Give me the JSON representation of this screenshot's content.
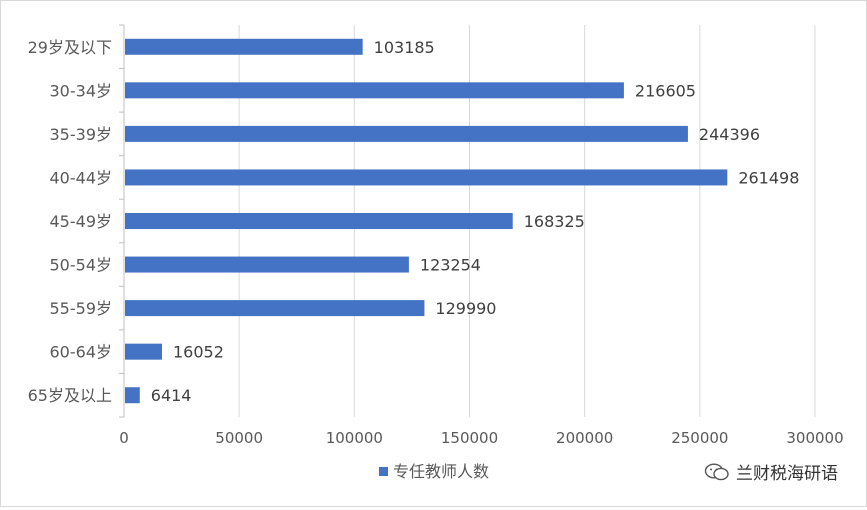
{
  "chart_data": {
    "type": "bar",
    "orientation": "horizontal",
    "categories": [
      "29岁及以下",
      "30-34岁",
      "35-39岁",
      "40-44岁",
      "45-49岁",
      "50-54岁",
      "55-59岁",
      "60-64岁",
      "65岁及以上"
    ],
    "series": [
      {
        "name": "专任教师人数",
        "values": [
          103185,
          216605,
          244396,
          261498,
          168325,
          123254,
          129990,
          16052,
          6414
        ],
        "color": "#4472c4"
      }
    ],
    "xlim": [
      0,
      300000
    ],
    "xticks": [
      0,
      50000,
      100000,
      150000,
      200000,
      250000,
      300000
    ],
    "grid": true,
    "legend": "bottom",
    "data_labels": true
  },
  "watermark": {
    "text": "兰财税海研语",
    "icon": "wechat-icon"
  }
}
